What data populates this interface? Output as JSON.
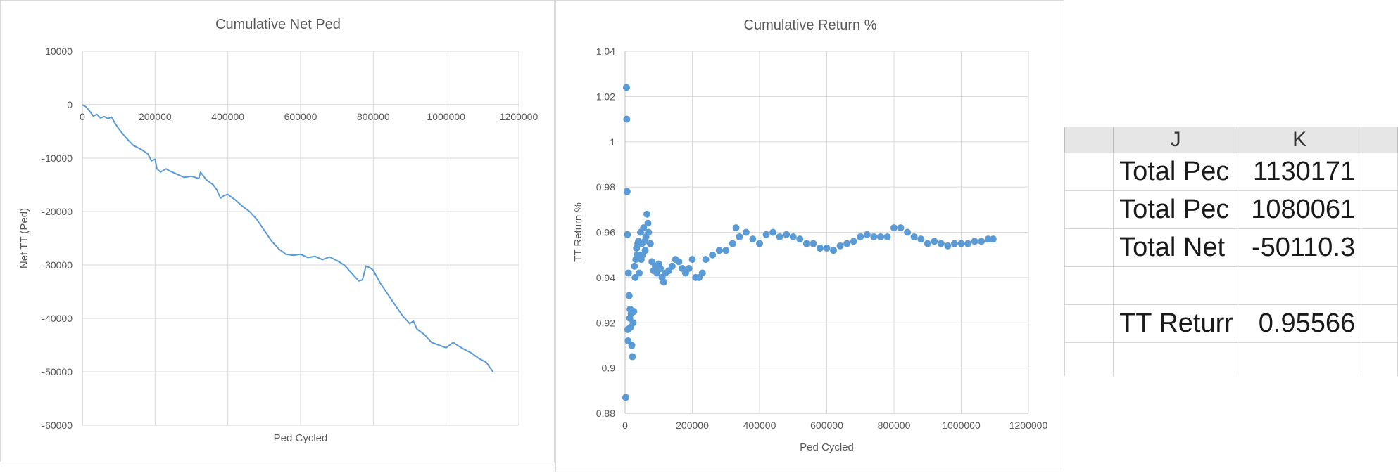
{
  "chart_data": [
    {
      "type": "line",
      "title": "Cumulative Net Ped",
      "xlabel": "Ped Cycled",
      "ylabel": "Net TT (Ped)",
      "xlim": [
        0,
        1200000
      ],
      "ylim": [
        -60000,
        10000
      ],
      "xticks": [
        0,
        200000,
        400000,
        600000,
        800000,
        1000000,
        1200000
      ],
      "yticks": [
        -60000,
        -50000,
        -40000,
        -30000,
        -20000,
        -10000,
        0,
        10000
      ],
      "xtick_labels": [
        "0",
        "200000",
        "400000",
        "600000",
        "800000",
        "1000000",
        "1200000"
      ],
      "ytick_labels": [
        "-60000",
        "-50000",
        "-40000",
        "-30000",
        "-20000",
        "-10000",
        "0",
        "10000"
      ],
      "grid": true,
      "color": "#5b9bd5",
      "series": [
        {
          "x": [
            0,
            10000,
            20000,
            30000,
            40000,
            50000,
            60000,
            70000,
            80000,
            90000,
            100000,
            120000,
            140000,
            160000,
            180000,
            190000,
            200000,
            205000,
            215000,
            230000,
            240000,
            260000,
            280000,
            300000,
            320000,
            325000,
            340000,
            360000,
            370000,
            380000,
            390000,
            400000,
            420000,
            440000,
            460000,
            480000,
            500000,
            520000,
            540000,
            560000,
            580000,
            600000,
            620000,
            640000,
            660000,
            680000,
            700000,
            720000,
            740000,
            760000,
            770000,
            780000,
            790000,
            800000,
            820000,
            840000,
            860000,
            880000,
            900000,
            910000,
            920000,
            940000,
            960000,
            980000,
            1000000,
            1020000,
            1030000,
            1050000,
            1070000,
            1090000,
            1110000,
            1130171
          ],
          "y": [
            0,
            -400,
            -1200,
            -2100,
            -1800,
            -2500,
            -2200,
            -2600,
            -2300,
            -3500,
            -4500,
            -6200,
            -7600,
            -8300,
            -9200,
            -10500,
            -10200,
            -12000,
            -12600,
            -12000,
            -12400,
            -13000,
            -13600,
            -13400,
            -13800,
            -12600,
            -14000,
            -15000,
            -16000,
            -17500,
            -17000,
            -16800,
            -17800,
            -19000,
            -20000,
            -21500,
            -23500,
            -25500,
            -27000,
            -28000,
            -28200,
            -28000,
            -28600,
            -28400,
            -29000,
            -28500,
            -29200,
            -30000,
            -31500,
            -33000,
            -32800,
            -30200,
            -30500,
            -31000,
            -33500,
            -35500,
            -37500,
            -39500,
            -41000,
            -40500,
            -42000,
            -43000,
            -44500,
            -45000,
            -45500,
            -44500,
            -45000,
            -45800,
            -46500,
            -47500,
            -48200,
            -50110
          ]
        }
      ]
    },
    {
      "type": "scatter",
      "title": "Cumulative Return %",
      "xlabel": "Ped Cycled",
      "ylabel": "TT Return %",
      "xlim": [
        0,
        1200000
      ],
      "ylim": [
        0.88,
        1.04
      ],
      "xticks": [
        0,
        200000,
        400000,
        600000,
        800000,
        1000000,
        1200000
      ],
      "yticks": [
        0.88,
        0.9,
        0.92,
        0.94,
        0.96,
        0.98,
        1.0,
        1.02,
        1.04
      ],
      "xtick_labels": [
        "0",
        "200000",
        "400000",
        "600000",
        "800000",
        "1000000",
        "1200000"
      ],
      "ytick_labels": [
        "0.88",
        "0.9",
        "0.92",
        "0.94",
        "0.96",
        "0.98",
        "1",
        "1.02",
        "1.04"
      ],
      "grid": true,
      "color": "#5b9bd5",
      "series": [
        {
          "x": [
            2000,
            4000,
            5000,
            6000,
            7000,
            8000,
            9000,
            10000,
            12000,
            14000,
            15000,
            16000,
            18000,
            20000,
            22000,
            24000,
            26000,
            28000,
            30000,
            32000,
            34000,
            36000,
            38000,
            40000,
            42000,
            44000,
            46000,
            48000,
            50000,
            52000,
            55000,
            58000,
            60000,
            62000,
            65000,
            68000,
            70000,
            75000,
            80000,
            85000,
            90000,
            95000,
            100000,
            105000,
            110000,
            115000,
            120000,
            130000,
            140000,
            150000,
            160000,
            170000,
            180000,
            190000,
            200000,
            210000,
            220000,
            230000,
            240000,
            260000,
            280000,
            300000,
            320000,
            330000,
            340000,
            360000,
            380000,
            400000,
            420000,
            440000,
            460000,
            480000,
            500000,
            520000,
            540000,
            560000,
            580000,
            600000,
            620000,
            640000,
            660000,
            680000,
            700000,
            720000,
            740000,
            760000,
            780000,
            800000,
            820000,
            840000,
            860000,
            880000,
            900000,
            920000,
            940000,
            960000,
            980000,
            1000000,
            1020000,
            1040000,
            1060000,
            1080000,
            1095000
          ],
          "y": [
            0.887,
            1.024,
            1.01,
            0.978,
            0.959,
            0.917,
            0.912,
            0.942,
            0.932,
            0.922,
            0.926,
            0.918,
            0.924,
            0.91,
            0.905,
            0.92,
            0.925,
            0.945,
            0.94,
            0.948,
            0.953,
            0.95,
            0.955,
            0.956,
            0.942,
            0.95,
            0.96,
            0.948,
            0.955,
            0.95,
            0.962,
            0.956,
            0.952,
            0.958,
            0.968,
            0.964,
            0.96,
            0.955,
            0.947,
            0.943,
            0.945,
            0.942,
            0.946,
            0.944,
            0.94,
            0.938,
            0.942,
            0.943,
            0.945,
            0.948,
            0.947,
            0.944,
            0.942,
            0.944,
            0.948,
            0.94,
            0.94,
            0.942,
            0.948,
            0.95,
            0.952,
            0.952,
            0.955,
            0.962,
            0.958,
            0.96,
            0.957,
            0.955,
            0.959,
            0.96,
            0.958,
            0.959,
            0.958,
            0.957,
            0.955,
            0.955,
            0.953,
            0.953,
            0.952,
            0.954,
            0.955,
            0.956,
            0.958,
            0.959,
            0.958,
            0.958,
            0.958,
            0.962,
            0.962,
            0.96,
            0.958,
            0.957,
            0.955,
            0.956,
            0.955,
            0.954,
            0.955,
            0.955,
            0.955,
            0.956,
            0.956,
            0.957,
            0.957
          ]
        }
      ]
    }
  ],
  "sheet": {
    "col_headers": [
      "J",
      "K"
    ],
    "rows": [
      {
        "label": "Total Pec",
        "value": "1130171"
      },
      {
        "label": "Total Pec",
        "value": "1080061"
      },
      {
        "label": "Total Net",
        "value": "-50110.3"
      },
      {
        "label": "",
        "value": ""
      },
      {
        "label": "TT Returr",
        "value": "0.95566"
      }
    ]
  }
}
